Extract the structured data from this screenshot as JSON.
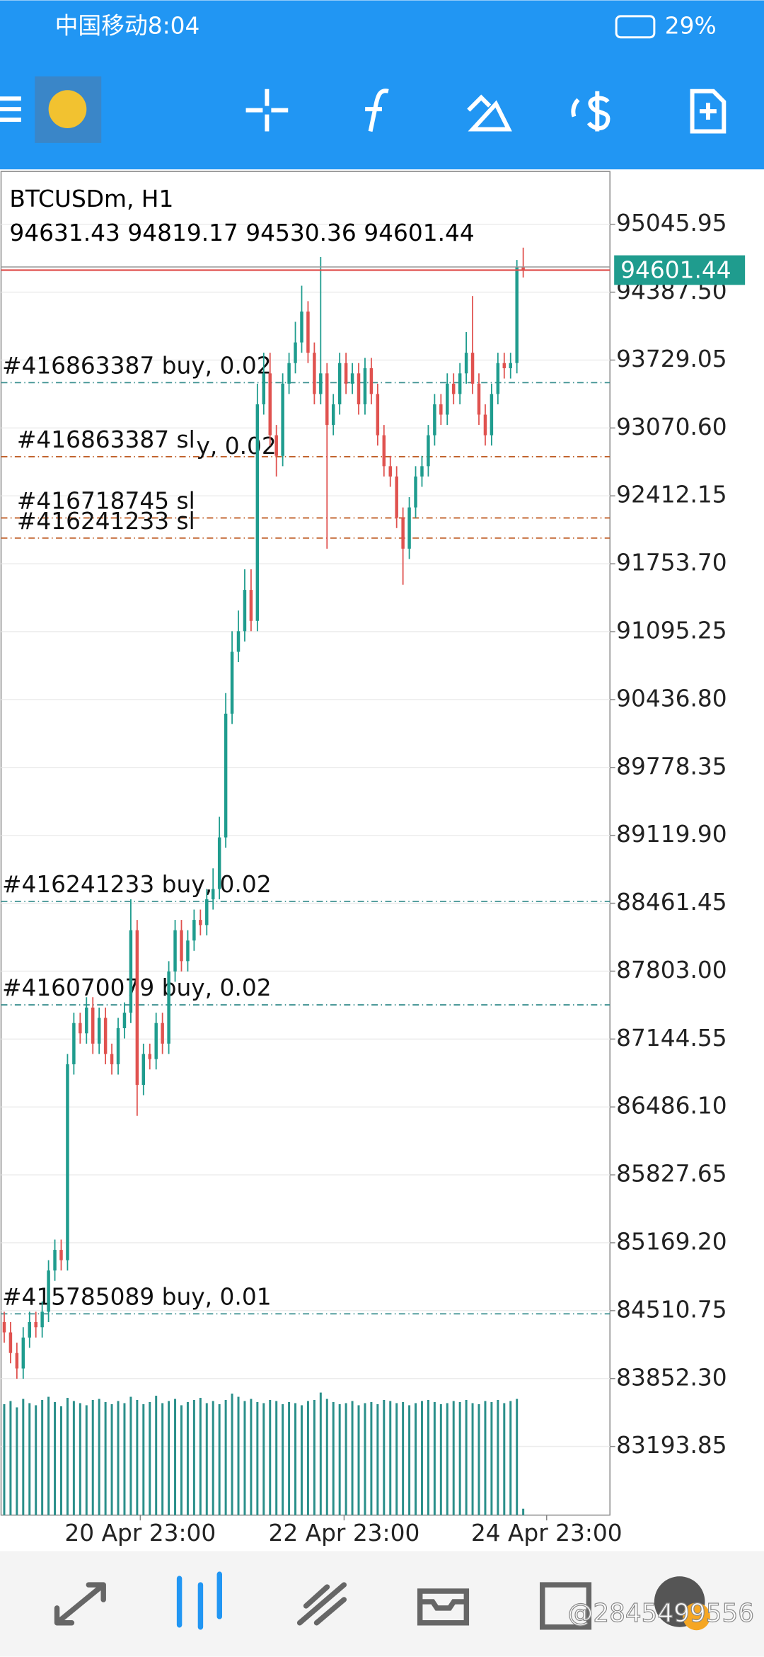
{
  "status_bar": {
    "carrier_time": "中国移动8:04",
    "battery": "29%"
  },
  "watermark": "@2845499556",
  "chart_data": {
    "type": "candlestick",
    "title": "BTCUSDm, H1",
    "bull_color": "#1f9c8e",
    "bear_color": "#e0524f",
    "volume_color": "#2a8f8a",
    "xlim": [
      -0.5,
      95.7
    ],
    "xticks": [
      {
        "value": 21.5,
        "label": "20 Apr 23:00"
      },
      {
        "value": 53.7,
        "label": "22 Apr 23:00"
      },
      {
        "value": 85.7,
        "label": "24 Apr 23:00"
      }
    ],
    "ylim": [
      82528,
      95558
    ],
    "yticks": [
      95045.95,
      {
        "value": 94387.5,
        "label": "94387.50"
      },
      93729.05,
      {
        "value": 93070.6,
        "label": "93070.60"
      },
      92412.15,
      {
        "value": 91753.7,
        "label": "91753.70"
      },
      91095.25,
      {
        "value": 90436.8,
        "label": "90436.80"
      },
      89778.35,
      {
        "value": 89119.9,
        "label": "89119.90"
      },
      88461.45,
      {
        "value": 87803,
        "label": "87803.00"
      },
      87144.55,
      {
        "value": 86486.1,
        "label": "86486.10"
      },
      85827.65,
      {
        "value": 85169.2,
        "label": "85169.20"
      },
      84510.75,
      {
        "value": 83852.3,
        "label": "83852.30"
      },
      83193.85
    ],
    "grid": true,
    "open": [
      84400,
      84300,
      84100,
      83950,
      84250,
      84400,
      84350,
      84500,
      84900,
      85100,
      85000,
      86900,
      87300,
      87200,
      87450,
      87100,
      87350,
      87000,
      86900,
      87250,
      87400,
      88200,
      86700,
      87000,
      86950,
      87300,
      87100,
      87800,
      88200,
      87900,
      88100,
      88300,
      88250,
      88500,
      88600,
      89100,
      90300,
      90900,
      91100,
      91500,
      91200,
      93300,
      93600,
      93000,
      92800,
      93500,
      93700,
      93900,
      94200,
      93800,
      93400,
      93600,
      93100,
      93300,
      93700,
      93500,
      93600,
      93300,
      93650,
      93400,
      93000,
      92700,
      92600,
      92200,
      91900,
      92300,
      92600,
      92700,
      93000,
      93300,
      93200,
      93500,
      93400,
      93600,
      93800,
      93500,
      93200,
      93000,
      93400,
      93700,
      93650,
      93700,
      94631.43
    ],
    "high": [
      84500,
      84400,
      84200,
      84350,
      84500,
      84500,
      84600,
      85000,
      85200,
      85200,
      87000,
      87400,
      87400,
      87550,
      87550,
      87450,
      87450,
      87100,
      87350,
      87500,
      88500,
      88300,
      87100,
      87100,
      87400,
      87400,
      87900,
      88300,
      88300,
      88200,
      88400,
      88400,
      88600,
      88800,
      89300,
      90500,
      91100,
      91300,
      91700,
      91700,
      93500,
      93800,
      93800,
      93100,
      93600,
      93800,
      94100,
      94450,
      94300,
      93900,
      94728,
      93700,
      93400,
      93800,
      93800,
      93700,
      93700,
      93750,
      93750,
      93500,
      93100,
      92800,
      92700,
      92300,
      92400,
      92700,
      92800,
      93100,
      93400,
      93400,
      93600,
      93600,
      93700,
      94000,
      94350,
      93600,
      93300,
      93500,
      93800,
      93800,
      93800,
      94700,
      94819.17
    ],
    "low": [
      84200,
      84000,
      83850,
      83850,
      84150,
      84250,
      84250,
      84400,
      84800,
      84900,
      84900,
      86800,
      87100,
      87100,
      87000,
      87000,
      86900,
      86800,
      86800,
      87150,
      87300,
      86400,
      86600,
      86850,
      86850,
      87000,
      87000,
      87700,
      87800,
      87800,
      88000,
      88150,
      88150,
      88400,
      88500,
      89000,
      90200,
      90800,
      91000,
      91100,
      91100,
      93200,
      92900,
      92600,
      92700,
      93400,
      93600,
      93800,
      93700,
      93300,
      93300,
      91900,
      93000,
      93200,
      93400,
      93400,
      93200,
      93200,
      93300,
      92900,
      92600,
      92500,
      92100,
      91550,
      91800,
      92200,
      92500,
      92600,
      92900,
      93100,
      93100,
      93300,
      93300,
      93500,
      93400,
      93100,
      92900,
      92900,
      93300,
      93550,
      93550,
      93600,
      94530.36
    ],
    "close": [
      84300,
      84100,
      83950,
      84250,
      84400,
      84350,
      84500,
      84900,
      85100,
      85000,
      86900,
      87300,
      87200,
      87450,
      87100,
      87350,
      87000,
      86900,
      87250,
      87400,
      88200,
      86700,
      87000,
      86950,
      87300,
      87100,
      87800,
      88200,
      87900,
      88100,
      88300,
      88250,
      88500,
      88600,
      89100,
      90300,
      90900,
      91100,
      91500,
      91200,
      93300,
      93600,
      93000,
      92800,
      93500,
      93700,
      93900,
      94200,
      93800,
      93400,
      93600,
      93100,
      93300,
      93700,
      93500,
      93600,
      93300,
      93650,
      93400,
      93000,
      92700,
      92600,
      92200,
      91900,
      92300,
      92600,
      92700,
      93000,
      93300,
      93200,
      93500,
      93400,
      93600,
      93800,
      93500,
      93200,
      93000,
      93400,
      93700,
      93650,
      93700,
      94631.43,
      94601.44
    ],
    "vlim": [
      0,
      1400
    ],
    "volume": [
      1050,
      1080,
      1020,
      1100,
      1060,
      1040,
      1090,
      1120,
      1070,
      1030,
      1110,
      1080,
      1060,
      1040,
      1090,
      1100,
      1070,
      1050,
      1080,
      1060,
      1120,
      1090,
      1050,
      1070,
      1130,
      1060,
      1080,
      1100,
      1040,
      1070,
      1090,
      1110,
      1060,
      1080,
      1050,
      1090,
      1150,
      1120,
      1080,
      1100,
      1070,
      1060,
      1090,
      1080,
      1050,
      1070,
      1060,
      1040,
      1080,
      1090,
      1160,
      1100,
      1070,
      1050,
      1060,
      1080,
      1040,
      1060,
      1070,
      1050,
      1090,
      1080,
      1060,
      1070,
      1040,
      1060,
      1080,
      1090,
      1070,
      1050,
      1060,
      1080,
      1070,
      1090,
      1060,
      1050,
      1080,
      1070,
      1090,
      1060,
      1080,
      1100,
      60
    ],
    "orders": [
      {
        "label": "#416863387 buy, 0.02",
        "price": 93510,
        "kind": "buy"
      },
      {
        "label": "#416863387 sl",
        "price": 92792,
        "kind": "sl"
      },
      {
        "label": "#416718745 sl",
        "price": 92198,
        "kind": "sl"
      },
      {
        "label": "#416241233 sl",
        "price": 92003,
        "kind": "sl"
      },
      {
        "label": "#416241233 buy, 0.02",
        "price": 88480,
        "kind": "buy"
      },
      {
        "label": "#416070079 buy, 0.02",
        "price": 87476,
        "kind": "buy"
      },
      {
        "label": "#415785089 buy, 0.01",
        "price": 84480,
        "kind": "buy"
      }
    ],
    "annotation": "y, 0.02",
    "buy_color": "#3a8f8f",
    "sl_color": "#c0602a",
    "price_line_color": "#e0524f"
  }
}
